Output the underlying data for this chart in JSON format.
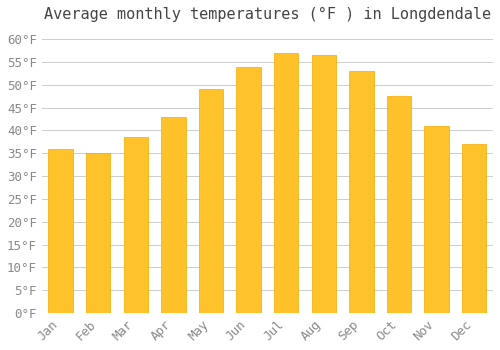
{
  "title": "Average monthly temperatures (°F ) in Longdendale",
  "months": [
    "Jan",
    "Feb",
    "Mar",
    "Apr",
    "May",
    "Jun",
    "Jul",
    "Aug",
    "Sep",
    "Oct",
    "Nov",
    "Dec"
  ],
  "values": [
    36,
    35,
    38.5,
    43,
    49,
    54,
    57,
    56.5,
    53,
    47.5,
    41,
    37
  ],
  "bar_color_main": "#FFC22A",
  "bar_color_edge": "#F5A800",
  "background_color": "#FFFFFF",
  "grid_color": "#CCCCCC",
  "ylim": [
    0,
    62
  ],
  "yticks": [
    0,
    5,
    10,
    15,
    20,
    25,
    30,
    35,
    40,
    45,
    50,
    55,
    60
  ],
  "title_fontsize": 11,
  "tick_fontsize": 9
}
